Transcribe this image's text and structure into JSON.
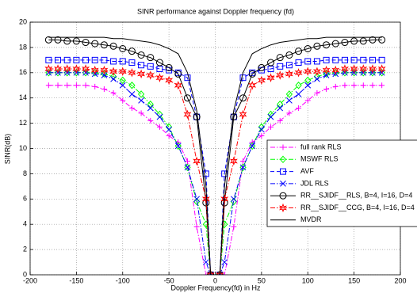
{
  "chart_data": {
    "type": "line",
    "title": "SINR performance against Doppler frequency (fd)",
    "xlabel": "Doppler Frequency(fd) in Hz",
    "ylabel": "SINR(dB)",
    "x": [
      -180,
      -170,
      -160,
      -150,
      -140,
      -130,
      -120,
      -110,
      -100,
      -90,
      -80,
      -70,
      -60,
      -50,
      -40,
      -30,
      -20,
      -10,
      -5,
      5,
      10,
      20,
      30,
      40,
      50,
      60,
      70,
      80,
      90,
      100,
      110,
      120,
      130,
      140,
      150,
      160,
      170,
      180
    ],
    "series": [
      {
        "name": "full rank RLS",
        "color": "#ff00ff",
        "marker": "plus",
        "linestyle": "dashdot",
        "values": [
          15,
          15,
          15,
          15,
          15,
          14.9,
          14.7,
          14.4,
          13.8,
          13.2,
          12.8,
          12.2,
          11.7,
          11,
          10.5,
          9,
          3.8,
          0,
          0,
          0,
          0,
          3.8,
          9,
          10.5,
          11,
          11.7,
          12.2,
          12.8,
          13.2,
          13.8,
          14.4,
          14.7,
          14.9,
          15,
          15,
          15,
          15,
          15
        ]
      },
      {
        "name": "MSWF RLS",
        "color": "#00ff00",
        "marker": "diamond",
        "linestyle": "dashdot",
        "values": [
          16,
          16,
          16,
          16,
          16,
          16,
          15.9,
          15.7,
          15.4,
          15,
          14.3,
          13.5,
          12.7,
          11.7,
          10.2,
          8.5,
          5.8,
          4,
          0,
          0,
          4,
          5.8,
          8.5,
          10.2,
          11.7,
          12.7,
          13.5,
          14.3,
          15,
          15.4,
          15.7,
          15.9,
          16,
          16,
          16,
          16,
          16,
          16
        ]
      },
      {
        "name": "AVF",
        "color": "#0000ff",
        "marker": "square",
        "linestyle": "dashed",
        "values": [
          17,
          17,
          17,
          17,
          17,
          17,
          17,
          16.9,
          16.9,
          16.8,
          16.6,
          16.5,
          16.3,
          16.2,
          16,
          15.6,
          12.5,
          8,
          0,
          0,
          8,
          12.5,
          15.6,
          16,
          16.2,
          16.3,
          16.5,
          16.6,
          16.8,
          16.9,
          16.9,
          17,
          17,
          17,
          17,
          17,
          17,
          17
        ]
      },
      {
        "name": "JDL RLS",
        "color": "#0000ff",
        "marker": "x",
        "linestyle": "dashdot",
        "values": [
          16,
          16,
          16,
          16,
          16,
          15.9,
          15.8,
          15.5,
          15,
          14.3,
          13.8,
          13.2,
          12.5,
          11.5,
          10.2,
          8.5,
          6,
          1,
          0,
          0,
          1,
          6,
          8.5,
          10.2,
          11.5,
          12.5,
          13.2,
          13.8,
          14.3,
          15,
          15.5,
          15.8,
          15.9,
          16,
          16,
          16,
          16,
          16
        ]
      },
      {
        "name": "RR__SJIDF__RLS, B=4, I=16, D=4",
        "color": "#000000",
        "marker": "circle",
        "linestyle": "solid",
        "values": [
          18.6,
          18.6,
          18.5,
          18.5,
          18.4,
          18.3,
          18.2,
          18.1,
          17.9,
          17.7,
          17.4,
          17.2,
          16.8,
          16.4,
          15.9,
          14,
          12.5,
          5.7,
          0,
          0,
          5.7,
          12.5,
          14,
          15.9,
          16.4,
          16.8,
          17.2,
          17.4,
          17.7,
          17.9,
          18.1,
          18.2,
          18.3,
          18.4,
          18.5,
          18.5,
          18.6,
          18.6
        ]
      },
      {
        "name": "RR__SJIDF__CCG, B=4, I=16, D=4",
        "color": "#ff0000",
        "marker": "star",
        "linestyle": "dashdot",
        "values": [
          16.3,
          16.3,
          16.3,
          16.3,
          16.3,
          16.2,
          16.2,
          16.1,
          16.1,
          16,
          15.9,
          15.8,
          15.6,
          15.4,
          15,
          12.7,
          9,
          6,
          0,
          0,
          6,
          9,
          12.7,
          15,
          15.4,
          15.6,
          15.8,
          15.9,
          16,
          16.1,
          16.1,
          16.2,
          16.2,
          16.3,
          16.3,
          16.3,
          16.3,
          16.3
        ]
      },
      {
        "name": "MVDR",
        "color": "#000000",
        "marker": "none",
        "linestyle": "solid",
        "values": [
          18.8,
          18.8,
          18.8,
          18.8,
          18.8,
          18.8,
          18.8,
          18.7,
          18.7,
          18.6,
          18.5,
          18.4,
          18.2,
          17.9,
          17.5,
          16,
          13,
          7,
          0,
          0,
          7,
          13,
          16,
          17.5,
          17.9,
          18.2,
          18.4,
          18.5,
          18.6,
          18.7,
          18.7,
          18.8,
          18.8,
          18.8,
          18.8,
          18.8,
          18.8,
          18.8
        ]
      }
    ],
    "xlim": [
      -200,
      200
    ],
    "xticks": [
      -200,
      -150,
      -100,
      -50,
      0,
      50,
      100,
      150,
      200
    ],
    "ylim": [
      0,
      20
    ],
    "yticks": [
      0,
      2,
      4,
      6,
      8,
      10,
      12,
      14,
      16,
      18,
      20
    ],
    "grid": true
  }
}
